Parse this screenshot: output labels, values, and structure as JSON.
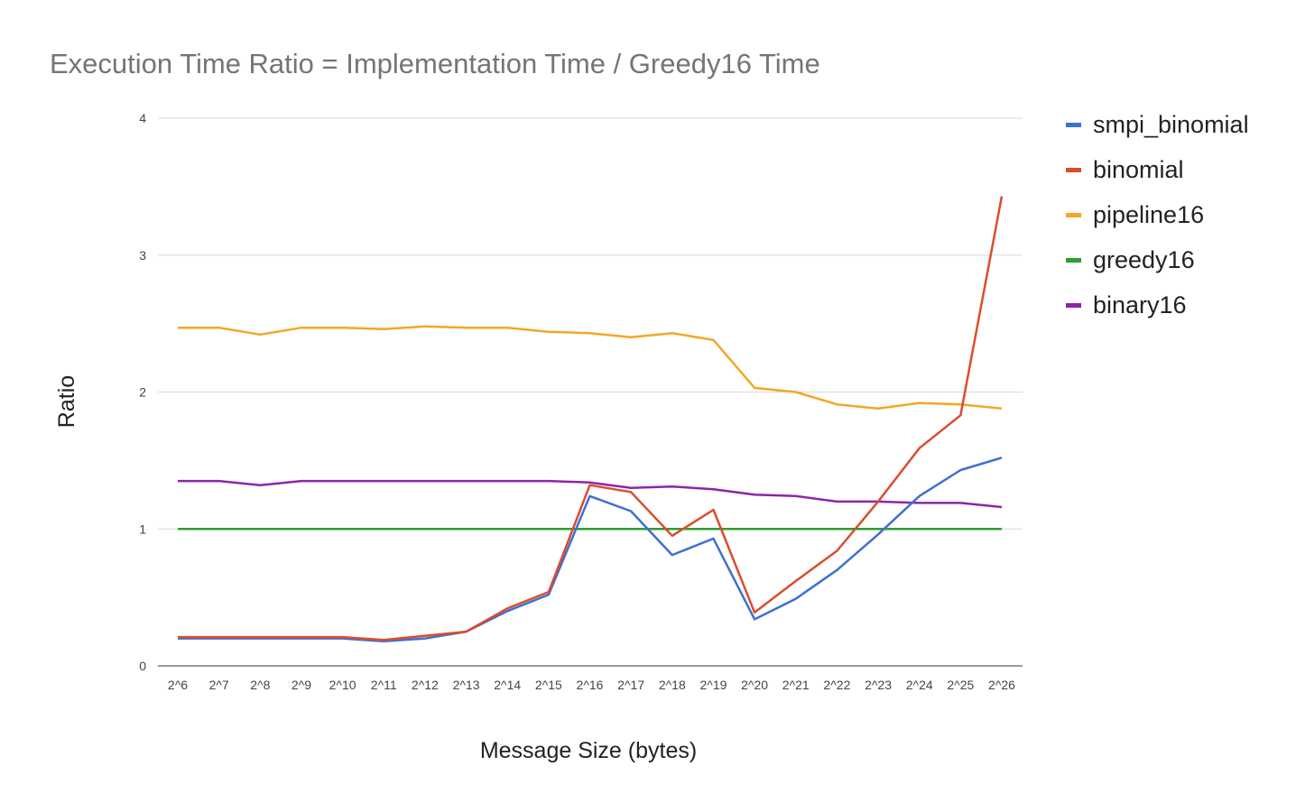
{
  "chart_data": {
    "type": "line",
    "title": "Execution Time Ratio = Implementation Time / Greedy16 Time",
    "xlabel": "Message Size (bytes)",
    "ylabel": "Ratio",
    "ylim": [
      0,
      4
    ],
    "yticks": [
      "0",
      "1",
      "2",
      "3",
      "4"
    ],
    "grid": true,
    "legend_position": "right",
    "categories": [
      "2^6",
      "2^7",
      "2^8",
      "2^9",
      "2^10",
      "2^11",
      "2^12",
      "2^13",
      "2^14",
      "2^15",
      "2^16",
      "2^17",
      "2^18",
      "2^19",
      "2^20",
      "2^21",
      "2^22",
      "2^23",
      "2^24",
      "2^25",
      "2^26"
    ],
    "series": [
      {
        "name": "smpi_binomial",
        "color": "#3e6fd4",
        "values": [
          0.2,
          0.2,
          0.2,
          0.2,
          0.2,
          0.18,
          0.2,
          0.25,
          0.4,
          0.52,
          1.24,
          1.13,
          0.81,
          0.93,
          0.34,
          0.49,
          0.7,
          0.96,
          1.24,
          1.43,
          1.52
        ]
      },
      {
        "name": "binomial",
        "color": "#db4c2c",
        "values": [
          0.21,
          0.21,
          0.21,
          0.21,
          0.21,
          0.19,
          0.22,
          0.25,
          0.42,
          0.54,
          1.32,
          1.27,
          0.95,
          1.14,
          0.39,
          0.62,
          0.84,
          1.2,
          1.59,
          1.83,
          3.43
        ]
      },
      {
        "name": "pipeline16",
        "color": "#f5a623",
        "values": [
          2.47,
          2.47,
          2.42,
          2.47,
          2.47,
          2.46,
          2.48,
          2.47,
          2.47,
          2.44,
          2.43,
          2.4,
          2.43,
          2.38,
          2.03,
          2.0,
          1.91,
          1.88,
          1.92,
          1.91,
          1.88
        ]
      },
      {
        "name": "greedy16",
        "color": "#2e9e2e",
        "values": [
          1,
          1,
          1,
          1,
          1,
          1,
          1,
          1,
          1,
          1,
          1,
          1,
          1,
          1,
          1,
          1,
          1,
          1,
          1,
          1,
          1
        ]
      },
      {
        "name": "binary16",
        "color": "#8e24aa",
        "values": [
          1.35,
          1.35,
          1.32,
          1.35,
          1.35,
          1.35,
          1.35,
          1.35,
          1.35,
          1.35,
          1.34,
          1.3,
          1.31,
          1.29,
          1.25,
          1.24,
          1.2,
          1.2,
          1.19,
          1.19,
          1.16
        ]
      }
    ]
  }
}
